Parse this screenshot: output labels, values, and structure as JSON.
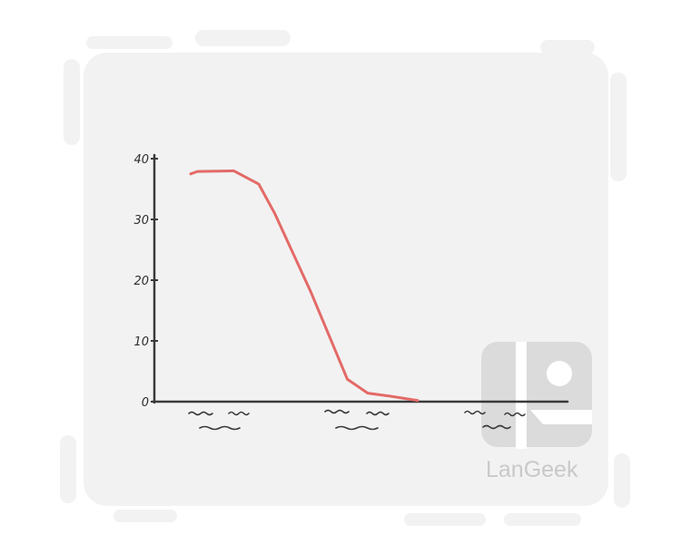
{
  "chart_data": {
    "type": "line",
    "title": "",
    "xlabel": "",
    "ylabel": "",
    "ylim": [
      0,
      40
    ],
    "yticks": [
      0,
      10,
      20,
      30,
      40
    ],
    "grid": false,
    "x_tick_labels_unreadable": true,
    "series": [
      {
        "color": "#e36a67",
        "points": [
          {
            "x": 0.0,
            "y": 37.5
          },
          {
            "x": 0.03,
            "y": 37.9
          },
          {
            "x": 0.19,
            "y": 38.0
          },
          {
            "x": 0.3,
            "y": 35.8
          },
          {
            "x": 0.37,
            "y": 31.0
          },
          {
            "x": 0.53,
            "y": 18.0
          },
          {
            "x": 0.69,
            "y": 3.7
          },
          {
            "x": 0.78,
            "y": 1.4
          },
          {
            "x": 0.88,
            "y": 0.9
          },
          {
            "x": 1.0,
            "y": 0.2
          }
        ]
      }
    ]
  },
  "watermark": {
    "text": "LanGeek"
  }
}
